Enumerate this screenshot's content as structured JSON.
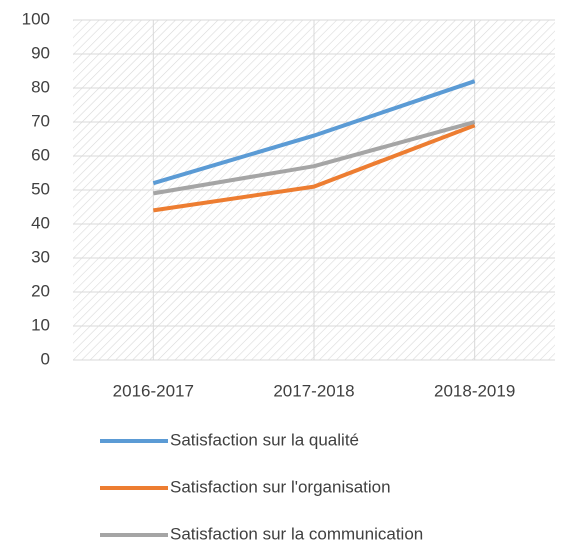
{
  "chart_data": {
    "type": "line",
    "categories": [
      "2016-2017",
      "2017-2018",
      "2018-2019"
    ],
    "series": [
      {
        "name": "Satisfaction sur la qualité",
        "color": "#5b9bd5",
        "values": [
          52,
          66,
          82
        ]
      },
      {
        "name": "Satisfaction sur l'organisation",
        "color": "#ed7d31",
        "values": [
          44,
          51,
          69
        ]
      },
      {
        "name": "Satisfaction sur la communication",
        "color": "#a5a5a5",
        "values": [
          49,
          57,
          70
        ]
      }
    ],
    "ylim": [
      0,
      100
    ],
    "yticks": [
      0,
      10,
      20,
      30,
      40,
      50,
      60,
      70,
      80,
      90,
      100
    ],
    "grid": true,
    "legend": "bottom"
  }
}
